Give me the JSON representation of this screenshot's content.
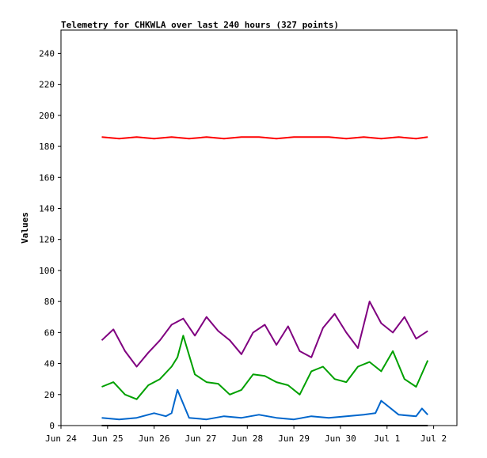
{
  "chart_data": {
    "type": "line",
    "title": "Telemetry for CHKWLA over last 240 hours (327 points)",
    "xlabel": "",
    "ylabel": "Values",
    "ylim": [
      0,
      255
    ],
    "xlim": [
      "Jun 24 00:00",
      "Jul 2 12:00"
    ],
    "y_ticks": [
      0,
      20,
      40,
      60,
      80,
      100,
      120,
      140,
      160,
      180,
      200,
      220,
      240
    ],
    "x_ticks": [
      "Jun 24",
      "Jun 25",
      "Jun 26",
      "Jun 27",
      "Jun 28",
      "Jun 29",
      "Jun 30",
      "Jul 1",
      "Jul 2"
    ],
    "grid": false,
    "legend": "none",
    "series": [
      {
        "color": "#ff0000",
        "x": [
          "Jun 24 21:00",
          "Jun 25 06:00",
          "Jun 25 15:00",
          "Jun 26 00:00",
          "Jun 26 09:00",
          "Jun 26 18:00",
          "Jun 27 03:00",
          "Jun 27 12:00",
          "Jun 27 21:00",
          "Jun 28 06:00",
          "Jun 28 15:00",
          "Jun 29 00:00",
          "Jun 29 09:00",
          "Jun 29 18:00",
          "Jun 30 03:00",
          "Jun 30 12:00",
          "Jun 30 21:00",
          "Jul 1 06:00",
          "Jul 1 15:00",
          "Jul 1 21:00"
        ],
        "values": [
          186,
          185,
          186,
          185,
          186,
          185,
          186,
          185,
          186,
          186,
          185,
          186,
          186,
          186,
          185,
          186,
          185,
          186,
          185,
          186
        ]
      },
      {
        "color": "#800080",
        "x": [
          "Jun 24 21:00",
          "Jun 25 03:00",
          "Jun 25 09:00",
          "Jun 25 15:00",
          "Jun 25 21:00",
          "Jun 26 03:00",
          "Jun 26 09:00",
          "Jun 26 15:00",
          "Jun 26 21:00",
          "Jun 27 03:00",
          "Jun 27 09:00",
          "Jun 27 15:00",
          "Jun 27 21:00",
          "Jun 28 03:00",
          "Jun 28 09:00",
          "Jun 28 15:00",
          "Jun 28 21:00",
          "Jun 29 03:00",
          "Jun 29 09:00",
          "Jun 29 15:00",
          "Jun 29 21:00",
          "Jun 30 03:00",
          "Jun 30 09:00",
          "Jun 30 15:00",
          "Jun 30 21:00",
          "Jul 1 03:00",
          "Jul 1 09:00",
          "Jul 1 15:00",
          "Jul 1 21:00"
        ],
        "values": [
          55,
          62,
          48,
          38,
          47,
          55,
          65,
          69,
          58,
          70,
          61,
          55,
          46,
          60,
          65,
          52,
          64,
          48,
          44,
          63,
          72,
          60,
          50,
          80,
          66,
          60,
          70,
          56,
          61
        ]
      },
      {
        "color": "#00a000",
        "x": [
          "Jun 24 21:00",
          "Jun 25 03:00",
          "Jun 25 09:00",
          "Jun 25 15:00",
          "Jun 25 21:00",
          "Jun 26 03:00",
          "Jun 26 09:00",
          "Jun 26 12:00",
          "Jun 26 15:00",
          "Jun 26 21:00",
          "Jun 27 03:00",
          "Jun 27 09:00",
          "Jun 27 15:00",
          "Jun 27 21:00",
          "Jun 28 03:00",
          "Jun 28 09:00",
          "Jun 28 15:00",
          "Jun 28 21:00",
          "Jun 29 03:00",
          "Jun 29 09:00",
          "Jun 29 15:00",
          "Jun 29 21:00",
          "Jun 30 03:00",
          "Jun 30 09:00",
          "Jun 30 15:00",
          "Jun 30 21:00",
          "Jul 1 03:00",
          "Jul 1 09:00",
          "Jul 1 15:00",
          "Jul 1 21:00"
        ],
        "values": [
          25,
          28,
          20,
          17,
          26,
          30,
          38,
          44,
          58,
          33,
          28,
          27,
          20,
          23,
          33,
          32,
          28,
          26,
          20,
          35,
          38,
          30,
          28,
          38,
          41,
          35,
          48,
          30,
          25,
          42
        ]
      },
      {
        "color": "#0066cc",
        "x": [
          "Jun 24 21:00",
          "Jun 25 06:00",
          "Jun 25 15:00",
          "Jun 26 00:00",
          "Jun 26 06:00",
          "Jun 26 09:00",
          "Jun 26 12:00",
          "Jun 26 18:00",
          "Jun 27 03:00",
          "Jun 27 12:00",
          "Jun 27 21:00",
          "Jun 28 06:00",
          "Jun 28 15:00",
          "Jun 29 00:00",
          "Jun 29 09:00",
          "Jun 29 18:00",
          "Jun 30 03:00",
          "Jun 30 12:00",
          "Jun 30 18:00",
          "Jun 30 21:00",
          "Jul 1 06:00",
          "Jul 1 15:00",
          "Jul 1 18:00",
          "Jul 1 21:00"
        ],
        "values": [
          5,
          4,
          5,
          8,
          6,
          8,
          23,
          5,
          4,
          6,
          5,
          7,
          5,
          4,
          6,
          5,
          6,
          7,
          8,
          16,
          7,
          6,
          11,
          7
        ]
      },
      {
        "color": "#000000",
        "x": [
          "Jun 24 21:00",
          "Jul 1 21:00"
        ],
        "values": [
          0,
          0
        ]
      }
    ]
  }
}
